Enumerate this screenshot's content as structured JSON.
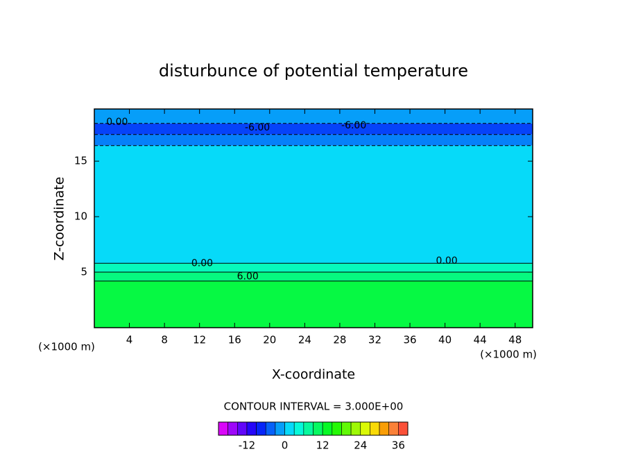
{
  "chart_data": {
    "type": "contour",
    "title": "disturbunce of potential temperature",
    "x_label": "X-coordinate",
    "y_label": "Z-coordinate",
    "x_unit": "(×1000 m)",
    "y_unit": "(×1000 m)",
    "xlim": [
      0,
      50
    ],
    "ylim": [
      0,
      19.7
    ],
    "xticks": [
      4,
      8,
      12,
      16,
      20,
      24,
      28,
      32,
      36,
      40,
      44,
      48
    ],
    "yticks": [
      5,
      10,
      15
    ],
    "field": {
      "z": [
        0,
        4.2,
        5,
        5.8,
        16.4,
        17.4,
        18.4,
        19.7
      ],
      "values": [
        12,
        9,
        6,
        1.5,
        -3,
        -6,
        -1.5
      ]
    },
    "annotations": [
      {
        "text": "0.00",
        "x": 2.6,
        "y": 18.5
      },
      {
        "text": "-6.00",
        "x": 18.6,
        "y": 18.0
      },
      {
        "text": "-6.00",
        "x": 29.6,
        "y": 18.2
      },
      {
        "text": "0.00",
        "x": 12.3,
        "y": 5.8
      },
      {
        "text": "6.00",
        "x": 17.5,
        "y": 4.6
      },
      {
        "text": "0.00",
        "x": 40.2,
        "y": 6.0
      }
    ],
    "contour_interval_label": "CONTOUR INTERVAL = 3.000E+00",
    "colorbar": {
      "interval": 3,
      "lim": [
        -21,
        39
      ],
      "ticks": [
        -12,
        0,
        12,
        24,
        36
      ]
    }
  }
}
